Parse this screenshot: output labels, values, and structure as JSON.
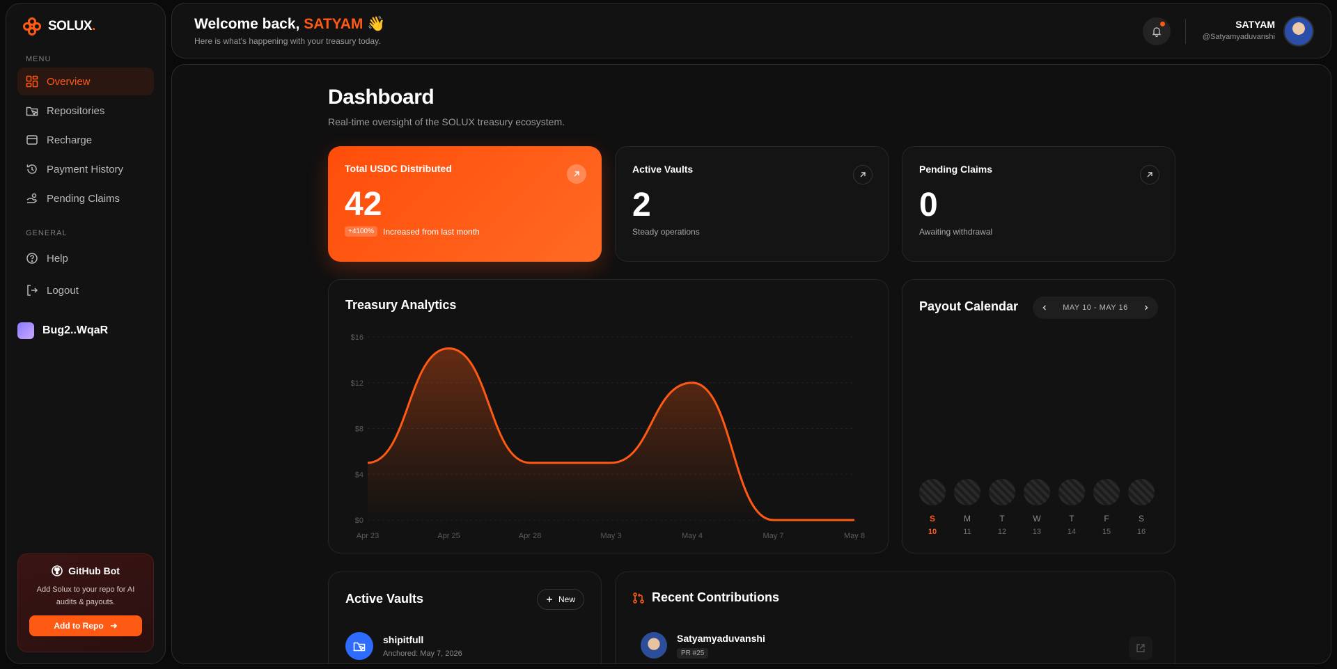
{
  "brand": {
    "name": "SOLUX",
    "dot": ".",
    "accent": "#ff5a14"
  },
  "sidebar": {
    "menu_label": "MENU",
    "general_label": "GENERAL",
    "items": [
      {
        "label": "Overview",
        "icon": "grid-icon",
        "active": true
      },
      {
        "label": "Repositories",
        "icon": "folder-cursor-icon"
      },
      {
        "label": "Recharge",
        "icon": "wallet-icon"
      },
      {
        "label": "Payment History",
        "icon": "history-icon"
      },
      {
        "label": "Pending Claims",
        "icon": "hand-coins-icon"
      }
    ],
    "general": [
      {
        "label": "Help",
        "icon": "help-circle-icon"
      },
      {
        "label": "Logout",
        "icon": "logout-icon"
      }
    ],
    "wallet": "Bug2..WqaR",
    "github_card": {
      "title": "GitHub Bot",
      "description": "Add Solux to your repo for AI audits & payouts.",
      "button": "Add to Repo"
    }
  },
  "header": {
    "welcome_prefix": "Welcome back,",
    "user_name": "SATYAM",
    "wave": "👋",
    "subtitle": "Here is what's happening with your treasury today.",
    "profile_name": "SATYAM",
    "profile_handle": "@Satyamyaduvanshi"
  },
  "page": {
    "title": "Dashboard",
    "subtitle": "Real-time oversight of the SOLUX treasury ecosystem."
  },
  "stats": [
    {
      "label": "Total USDC Distributed",
      "value": "42",
      "badge": "+4100%",
      "sub": "Increased from last month"
    },
    {
      "label": "Active Vaults",
      "value": "2",
      "sub": "Steady operations"
    },
    {
      "label": "Pending Claims",
      "value": "0",
      "sub": "Awaiting withdrawal"
    }
  ],
  "analytics": {
    "title": "Treasury Analytics",
    "chart_data": {
      "type": "area",
      "x": [
        "Apr 23",
        "Apr 25",
        "Apr 28",
        "May 3",
        "May 4",
        "May 7",
        "May 8"
      ],
      "y_ticks": [
        "$0",
        "$4",
        "$8",
        "$12",
        "$16"
      ],
      "ylim": [
        0,
        16
      ],
      "points": [
        {
          "x": "Apr 23",
          "y": 5
        },
        {
          "x": "Apr 25",
          "y": 15
        },
        {
          "x": "Apr 28",
          "y": 5
        },
        {
          "x": "May 3",
          "y": 5
        },
        {
          "x": "May 4",
          "y": 12
        },
        {
          "x": "May 7",
          "y": 0
        },
        {
          "x": "May 8",
          "y": 0
        }
      ],
      "color": "#ff5a14"
    }
  },
  "calendar": {
    "title": "Payout Calendar",
    "range": "MAY 10 - MAY 16",
    "days": [
      {
        "d": "S",
        "n": "10",
        "today": true
      },
      {
        "d": "M",
        "n": "11"
      },
      {
        "d": "T",
        "n": "12"
      },
      {
        "d": "W",
        "n": "13"
      },
      {
        "d": "T",
        "n": "14"
      },
      {
        "d": "F",
        "n": "15"
      },
      {
        "d": "S",
        "n": "16"
      }
    ]
  },
  "vaults": {
    "title": "Active Vaults",
    "new_label": "New",
    "items": [
      {
        "name": "shipitfull",
        "sub": "Anchored: May 7, 2026"
      }
    ]
  },
  "contributions": {
    "title": "Recent Contributions",
    "items": [
      {
        "name": "Satyamyaduvanshi",
        "badge": "PR #25"
      }
    ]
  }
}
